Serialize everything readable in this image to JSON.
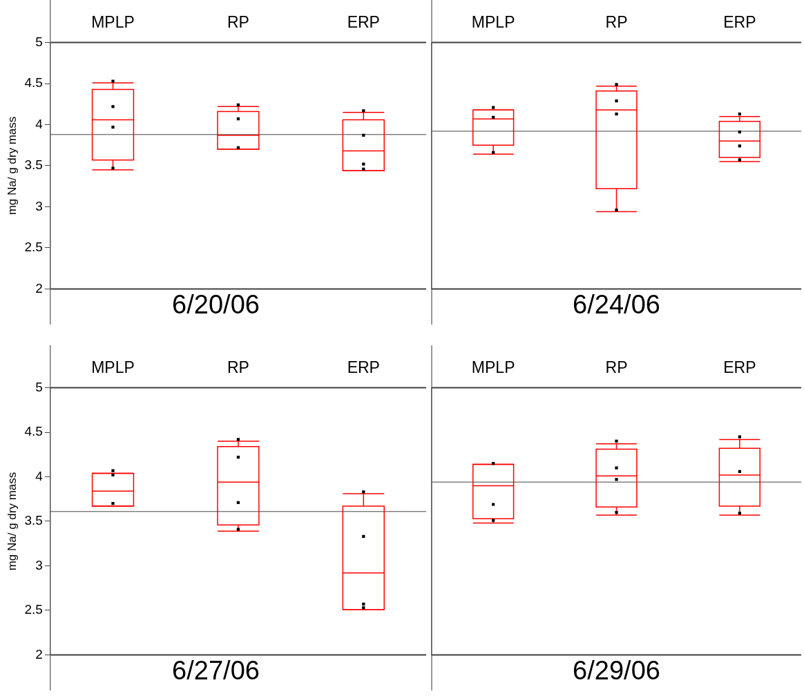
{
  "chart_data": [
    {
      "type": "box",
      "categories": [
        "MPLP",
        "RP",
        "ERP"
      ],
      "xlabel": "6/20/06",
      "ylabel": "mg Na/ g dry mass",
      "ylim": [
        2,
        5
      ],
      "yticks": [
        2,
        2.5,
        3,
        3.5,
        4,
        4.5,
        5
      ],
      "grid": false,
      "legend": false,
      "marker": "square",
      "ref_lines": [
        {
          "axis": "y",
          "value": 3.88,
          "color": "#808080"
        }
      ],
      "series": [
        {
          "type": "box",
          "color": "#ff0000",
          "boxes": [
            {
              "low": 3.45,
              "q1": 3.57,
              "median": 4.06,
              "q3": 4.43,
              "high": 4.51
            },
            {
              "low": 3.7,
              "q1": 3.7,
              "median": 3.87,
              "q3": 4.16,
              "high": 4.22
            },
            {
              "low": 3.44,
              "q1": 3.44,
              "median": 3.68,
              "q3": 4.06,
              "high": 4.15
            }
          ]
        },
        {
          "type": "scatter",
          "color": "#000000",
          "x": [
            "MPLP",
            "MPLP",
            "MPLP",
            "MPLP",
            "RP",
            "RP",
            "RP",
            "ERP",
            "ERP",
            "ERP",
            "ERP"
          ],
          "values": [
            4.53,
            4.22,
            3.97,
            3.47,
            4.24,
            4.07,
            3.72,
            4.17,
            3.87,
            3.52,
            3.46
          ]
        }
      ]
    },
    {
      "type": "box",
      "categories": [
        "MPLP",
        "RP",
        "ERP"
      ],
      "xlabel": "6/24/06",
      "ylim": [
        2,
        5
      ],
      "yticks": [
        2,
        2.5,
        3,
        3.5,
        4,
        4.5,
        5
      ],
      "tick_labels": "x",
      "grid": false,
      "legend": false,
      "marker": "square",
      "ref_lines": [
        {
          "axis": "y",
          "value": 3.92,
          "color": "#808080"
        }
      ],
      "series": [
        {
          "type": "box",
          "color": "#ff0000",
          "boxes": [
            {
              "low": 3.64,
              "q1": 3.75,
              "median": 4.07,
              "q3": 4.18,
              "high": 4.18
            },
            {
              "low": 2.94,
              "q1": 3.22,
              "median": 4.18,
              "q3": 4.41,
              "high": 4.47
            },
            {
              "low": 3.55,
              "q1": 3.6,
              "median": 3.8,
              "q3": 4.04,
              "high": 4.1
            }
          ]
        },
        {
          "type": "scatter",
          "color": "#000000",
          "x": [
            "MPLP",
            "MPLP",
            "MPLP",
            "RP",
            "RP",
            "RP",
            "RP",
            "ERP",
            "ERP",
            "ERP",
            "ERP"
          ],
          "values": [
            4.21,
            4.09,
            3.66,
            4.49,
            4.29,
            4.13,
            2.96,
            4.13,
            3.91,
            3.74,
            3.57
          ]
        }
      ]
    },
    {
      "type": "box",
      "categories": [
        "MPLP",
        "RP",
        "ERP"
      ],
      "xlabel": "6/27/06",
      "ylabel": "mg Na/ g dry mass",
      "ylim": [
        2,
        5
      ],
      "yticks": [
        2,
        2.5,
        3,
        3.5,
        4,
        4.5,
        5
      ],
      "grid": false,
      "legend": false,
      "marker": "square",
      "ref_lines": [
        {
          "axis": "y",
          "value": 3.61,
          "color": "#808080"
        }
      ],
      "series": [
        {
          "type": "box",
          "color": "#ff0000",
          "boxes": [
            {
              "low": 3.67,
              "q1": 3.67,
              "median": 3.84,
              "q3": 4.04,
              "high": 4.04
            },
            {
              "low": 3.39,
              "q1": 3.46,
              "median": 3.94,
              "q3": 4.34,
              "high": 4.4
            },
            {
              "low": 2.51,
              "q1": 2.51,
              "median": 2.92,
              "q3": 3.67,
              "high": 3.81
            }
          ]
        },
        {
          "type": "scatter",
          "color": "#000000",
          "x": [
            "MPLP",
            "MPLP",
            "MPLP",
            "RP",
            "RP",
            "RP",
            "RP",
            "ERP",
            "ERP",
            "ERP",
            "ERP"
          ],
          "values": [
            4.07,
            4.02,
            3.7,
            4.42,
            4.22,
            3.71,
            3.41,
            3.83,
            3.33,
            2.57,
            2.53
          ]
        }
      ]
    },
    {
      "type": "box",
      "categories": [
        "MPLP",
        "RP",
        "ERP"
      ],
      "xlabel": "6/29/06",
      "ylim": [
        2,
        5
      ],
      "yticks": [
        2,
        2.5,
        3,
        3.5,
        4,
        4.5,
        5
      ],
      "tick_labels": "x",
      "grid": false,
      "legend": false,
      "marker": "square",
      "ref_lines": [
        {
          "axis": "y",
          "value": 3.94,
          "color": "#808080"
        }
      ],
      "series": [
        {
          "type": "box",
          "color": "#ff0000",
          "boxes": [
            {
              "low": 3.48,
              "q1": 3.53,
              "median": 3.9,
              "q3": 4.14,
              "high": 4.14
            },
            {
              "low": 3.57,
              "q1": 3.66,
              "median": 4.01,
              "q3": 4.31,
              "high": 4.37
            },
            {
              "low": 3.57,
              "q1": 3.67,
              "median": 4.02,
              "q3": 4.32,
              "high": 4.42
            }
          ]
        },
        {
          "type": "scatter",
          "color": "#000000",
          "x": [
            "MPLP",
            "MPLP",
            "MPLP",
            "RP",
            "RP",
            "RP",
            "RP",
            "ERP",
            "ERP",
            "ERP"
          ],
          "values": [
            4.15,
            3.69,
            3.51,
            4.4,
            4.1,
            3.97,
            3.6,
            4.45,
            4.06,
            3.59
          ]
        }
      ]
    }
  ]
}
